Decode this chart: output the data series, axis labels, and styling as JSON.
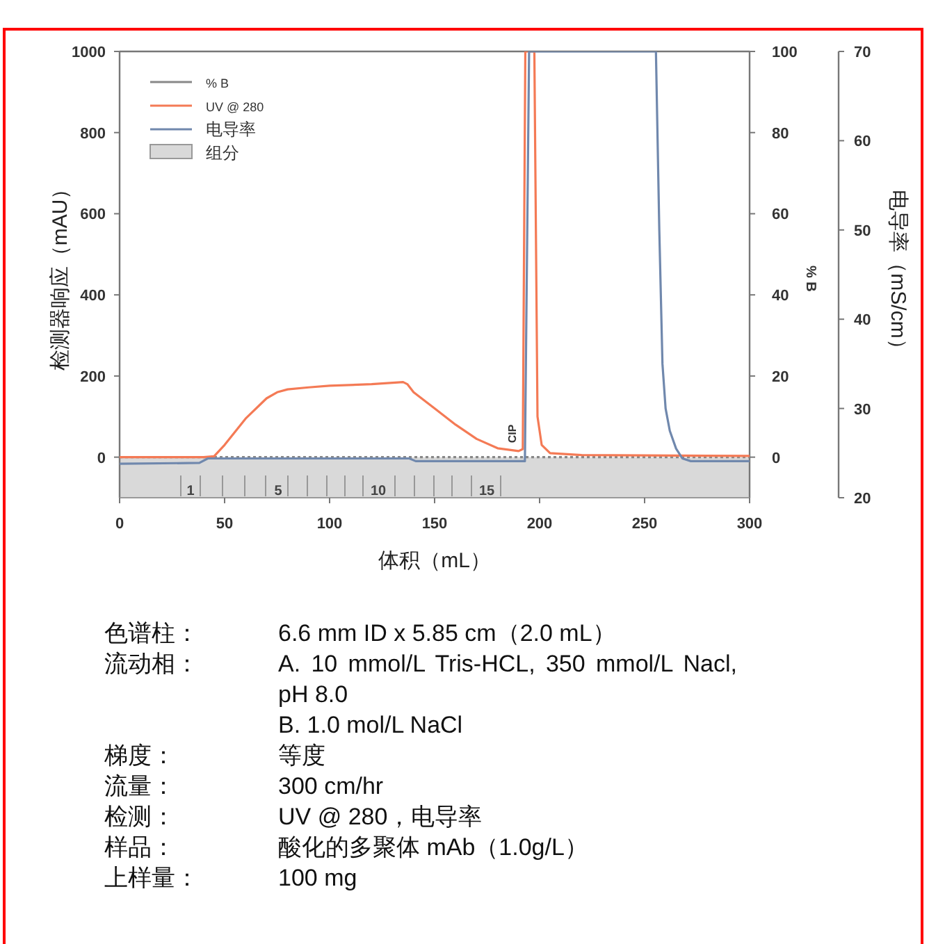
{
  "chart_data": {
    "type": "line",
    "xlabel": "体积（mL）",
    "ylabel": "检测器响应（mAU）",
    "y2label": "% B",
    "y3label": "电导率（mS/cm）",
    "xlim": [
      0,
      300
    ],
    "xticks": [
      0,
      50,
      100,
      150,
      200,
      250,
      300
    ],
    "ylim": [
      -100,
      1000
    ],
    "yticks": [
      0,
      200,
      400,
      600,
      800,
      1000
    ],
    "y2lim": [
      -10,
      100
    ],
    "y2ticks": [
      0,
      20,
      40,
      60,
      80,
      100
    ],
    "y3lim": [
      20,
      70
    ],
    "y3ticks": [
      20,
      30,
      40,
      50,
      60,
      70
    ],
    "legend": "top left",
    "series": [
      {
        "name": "% B",
        "type": "line",
        "axis": "y2",
        "color": "#888888",
        "line_style": "dotted",
        "x": [
          0,
          300
        ],
        "values": [
          0,
          0
        ]
      },
      {
        "name": "UV @ 280",
        "color": "#f47a55",
        "x": [
          0,
          40,
          45,
          50,
          60,
          70,
          75,
          80,
          90,
          100,
          120,
          135,
          137,
          140,
          150,
          160,
          170,
          180,
          190,
          192,
          193.2,
          197.5,
          199,
          201,
          205,
          220,
          300
        ],
        "values": [
          0,
          0,
          2,
          30,
          95,
          145,
          160,
          167,
          172,
          176,
          180,
          185,
          180,
          160,
          120,
          80,
          45,
          22,
          15,
          20,
          1000,
          1000,
          100,
          30,
          10,
          5,
          3
        ]
      },
      {
        "name": "电导率",
        "type": "line",
        "axis": "y3",
        "color": "#7088ad",
        "x": [
          0,
          38,
          42,
          138,
          141,
          193,
          195,
          255.4,
          257,
          258.5,
          260,
          262,
          265,
          268,
          272,
          300
        ],
        "values": [
          23.8,
          23.9,
          24.4,
          24.4,
          24.1,
          24.1,
          70,
          70,
          50,
          35,
          30,
          27.5,
          25.5,
          24.4,
          24.1,
          24.1
        ]
      }
    ],
    "bands": [
      {
        "axis": "y",
        "from": -100,
        "to": 0,
        "color": "#d9d9d9",
        "label": "组分"
      }
    ],
    "annotations": [
      "1",
      "5",
      "10",
      "15",
      "CIP",
      "色谱柱：",
      "6.6 mm ID x 5.85 cm（2.0 mL）",
      "流动相：",
      "A.  10  mmol/L  Tris-HCL,  350  mmol/L Nacl, pH 8.0\nB. 1.0 mol/L NaCl",
      "梯度：",
      "等度",
      "流量：",
      "300 cm/hr",
      "检测：",
      "UV @ 280，电导率",
      "样品：",
      "酸化的多聚体 mAb（1.0g/L）",
      "上样量：",
      "100 mg"
    ]
  }
}
